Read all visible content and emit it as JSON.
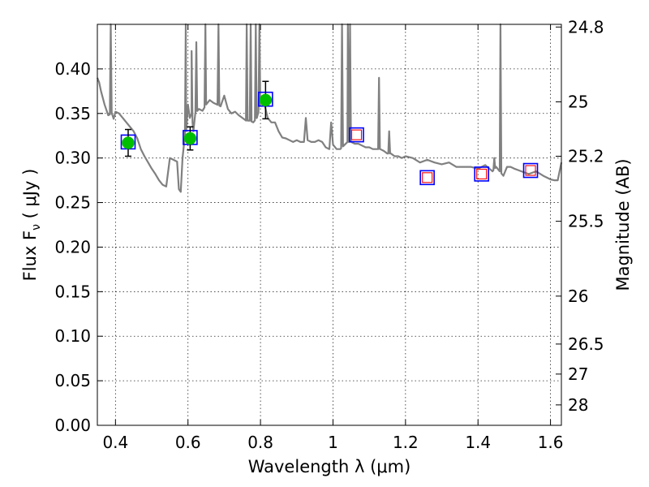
{
  "chart_data": {
    "type": "scatter",
    "title": "",
    "xlabel": "Wavelength  λ (μm)",
    "ylabel": "Flux  F",
    "ylabel_sub": "ν",
    "ylabel_unit": "  ( μJy )",
    "y2label": "Magnitude (AB)",
    "xlim": [
      0.35,
      1.63
    ],
    "ylim": [
      0.0,
      0.45
    ],
    "x_ticks": [
      0.4,
      0.6,
      0.8,
      1.0,
      1.2,
      1.4,
      1.6
    ],
    "x_tick_labels": [
      "0.4",
      "0.6",
      "0.8",
      "1",
      "1.2",
      "1.4",
      "1.6"
    ],
    "y_ticks": [
      0.0,
      0.05,
      0.1,
      0.15,
      0.2,
      0.25,
      0.3,
      0.35,
      0.4
    ],
    "y_tick_labels": [
      "0.00",
      "0.05",
      "0.10",
      "0.15",
      "0.20",
      "0.25",
      "0.30",
      "0.35",
      "0.40"
    ],
    "y2_tick_labels": [
      "24.8",
      "25",
      "25.2",
      "25.5",
      "26",
      "26.5",
      "27",
      "28"
    ],
    "y2_tick_flux": [
      0.447,
      0.363,
      0.302,
      0.229,
      0.145,
      0.0912,
      0.0575,
      0.0229
    ],
    "grid": true,
    "colors": {
      "spectrum": "#808080",
      "observed_marker": "#00bf00",
      "model_box": "#0000ff",
      "predicted_marker": "#ff0000",
      "error_bar": "#000000"
    },
    "observed_points": [
      {
        "x": 0.435,
        "y": 0.317,
        "yerr": 0.015
      },
      {
        "x": 0.606,
        "y": 0.322,
        "yerr": 0.013
      },
      {
        "x": 0.814,
        "y": 0.365,
        "yerr": 0.021
      }
    ],
    "model_points": [
      {
        "x": 0.435,
        "y": 0.318
      },
      {
        "x": 0.606,
        "y": 0.323
      },
      {
        "x": 0.814,
        "y": 0.366
      },
      {
        "x": 1.065,
        "y": 0.326
      },
      {
        "x": 1.26,
        "y": 0.278
      },
      {
        "x": 1.41,
        "y": 0.282
      },
      {
        "x": 1.545,
        "y": 0.286
      }
    ],
    "predicted_points": [
      {
        "x": 1.065,
        "y": 0.326
      },
      {
        "x": 1.26,
        "y": 0.278
      },
      {
        "x": 1.41,
        "y": 0.282
      },
      {
        "x": 1.545,
        "y": 0.286
      }
    ],
    "spectrum": {
      "name": "",
      "x": [
        0.35,
        0.355,
        0.36,
        0.37,
        0.38,
        0.39,
        0.395,
        0.4,
        0.41,
        0.42,
        0.43,
        0.44,
        0.45,
        0.46,
        0.47,
        0.48,
        0.49,
        0.5,
        0.51,
        0.52,
        0.53,
        0.54,
        0.55,
        0.56,
        0.57,
        0.575,
        0.58,
        0.585,
        0.59,
        0.595,
        0.6,
        0.605,
        0.61,
        0.615,
        0.62,
        0.63,
        0.64,
        0.65,
        0.66,
        0.67,
        0.68,
        0.69,
        0.7,
        0.71,
        0.72,
        0.73,
        0.74,
        0.75,
        0.76,
        0.77,
        0.78,
        0.79,
        0.8,
        0.81,
        0.82,
        0.83,
        0.84,
        0.85,
        0.86,
        0.87,
        0.88,
        0.89,
        0.9,
        0.91,
        0.92,
        0.925,
        0.93,
        0.94,
        0.95,
        0.96,
        0.97,
        0.98,
        0.99,
        0.995,
        1.0,
        1.01,
        1.02,
        1.03,
        1.04,
        1.05,
        1.06,
        1.07,
        1.08,
        1.09,
        1.1,
        1.11,
        1.12,
        1.13,
        1.14,
        1.15,
        1.16,
        1.17,
        1.18,
        1.19,
        1.2,
        1.22,
        1.24,
        1.26,
        1.28,
        1.3,
        1.32,
        1.34,
        1.36,
        1.38,
        1.4,
        1.42,
        1.44,
        1.45,
        1.46,
        1.47,
        1.48,
        1.49,
        1.5,
        1.52,
        1.54,
        1.56,
        1.58,
        1.6,
        1.61,
        1.62,
        1.63
      ],
      "y": [
        0.39,
        0.385,
        0.375,
        0.36,
        0.348,
        0.35,
        0.344,
        0.352,
        0.35,
        0.345,
        0.34,
        0.335,
        0.33,
        0.322,
        0.31,
        0.302,
        0.295,
        0.288,
        0.282,
        0.275,
        0.27,
        0.268,
        0.3,
        0.298,
        0.296,
        0.265,
        0.262,
        0.3,
        0.32,
        0.33,
        0.36,
        0.345,
        0.35,
        0.33,
        0.35,
        0.355,
        0.353,
        0.36,
        0.365,
        0.362,
        0.36,
        0.358,
        0.37,
        0.355,
        0.35,
        0.352,
        0.348,
        0.345,
        0.342,
        0.342,
        0.34,
        0.345,
        0.36,
        0.362,
        0.345,
        0.34,
        0.34,
        0.33,
        0.323,
        0.322,
        0.32,
        0.318,
        0.32,
        0.318,
        0.318,
        0.345,
        0.32,
        0.318,
        0.318,
        0.32,
        0.318,
        0.312,
        0.31,
        0.34,
        0.315,
        0.31,
        0.31,
        0.314,
        0.318,
        0.318,
        0.316,
        0.316,
        0.314,
        0.312,
        0.312,
        0.31,
        0.31,
        0.31,
        0.308,
        0.305,
        0.305,
        0.302,
        0.302,
        0.3,
        0.302,
        0.3,
        0.295,
        0.298,
        0.295,
        0.293,
        0.295,
        0.29,
        0.29,
        0.29,
        0.288,
        0.292,
        0.285,
        0.29,
        0.285,
        0.28,
        0.29,
        0.29,
        0.288,
        0.285,
        0.282,
        0.285,
        0.28,
        0.276,
        0.275,
        0.275,
        0.295
      ]
    },
    "spikes": [
      {
        "x": 0.387,
        "y": 0.45
      },
      {
        "x": 0.594,
        "y": 0.45
      },
      {
        "x": 0.61,
        "y": 0.42
      },
      {
        "x": 0.623,
        "y": 0.43
      },
      {
        "x": 0.648,
        "y": 0.45
      },
      {
        "x": 0.684,
        "y": 0.45
      },
      {
        "x": 0.762,
        "y": 0.45
      },
      {
        "x": 0.773,
        "y": 0.45
      },
      {
        "x": 0.787,
        "y": 0.45
      },
      {
        "x": 0.797,
        "y": 0.45
      },
      {
        "x": 1.025,
        "y": 0.45
      },
      {
        "x": 1.041,
        "y": 0.45
      },
      {
        "x": 1.047,
        "y": 0.45
      },
      {
        "x": 1.127,
        "y": 0.39
      },
      {
        "x": 1.155,
        "y": 0.33
      },
      {
        "x": 1.445,
        "y": 0.3
      },
      {
        "x": 1.462,
        "y": 0.45
      }
    ]
  }
}
